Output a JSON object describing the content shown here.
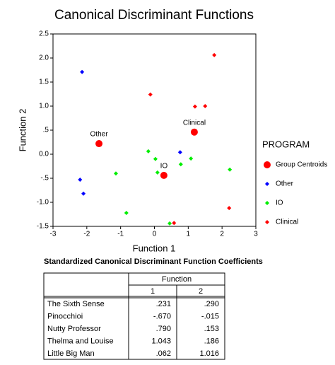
{
  "chart_data": {
    "type": "scatter",
    "title": "Canonical Discriminant Functions",
    "xlabel": "Function 1",
    "ylabel": "Function 2",
    "xlim": [
      -3,
      3
    ],
    "ylim": [
      -1.5,
      2.5
    ],
    "xticks": [
      -3,
      -2,
      -1,
      0,
      1,
      2,
      3
    ],
    "yticks": [
      2.5,
      {
        "value": 2,
        "label": "2.0"
      },
      1.5,
      {
        "value": 1,
        "label": "1.0"
      },
      {
        "value": 0.5,
        "label": ".5"
      },
      {
        "value": 0,
        "label": "0.0"
      },
      {
        "value": -0.5,
        "label": "-.5"
      },
      {
        "value": -1,
        "label": "-1.0"
      },
      -1.5
    ],
    "legend_title": "PROGRAM",
    "series": [
      {
        "name": "Group Centroids",
        "color": "#ff0000",
        "marker": "circle",
        "x": [
          -1.64,
          0.28,
          1.18
        ],
        "values": [
          0.22,
          -0.44,
          0.46
        ],
        "point_labels": [
          "Other",
          "IO",
          "Clinical"
        ]
      },
      {
        "name": "Other",
        "color": "#0000ff",
        "marker": "diamond",
        "x": [
          -2.14,
          -2.2,
          -2.1,
          0.76
        ],
        "values": [
          1.71,
          -0.53,
          -0.82,
          0.04
        ]
      },
      {
        "name": "IO",
        "color": "#00ee00",
        "marker": "diamond",
        "x": [
          -0.18,
          0.03,
          -1.14,
          0.09,
          -0.83,
          0.45,
          0.78,
          1.08,
          2.23
        ],
        "values": [
          0.06,
          -0.1,
          -0.4,
          -0.38,
          -1.22,
          -1.44,
          -0.21,
          -0.09,
          -0.32
        ]
      },
      {
        "name": "Clinical",
        "color": "#ff0000",
        "marker": "diamond",
        "x": [
          1.77,
          -0.12,
          1.2,
          1.5,
          2.21,
          0.58
        ],
        "values": [
          2.06,
          1.24,
          0.99,
          1.0,
          -1.12,
          -1.43
        ]
      }
    ]
  },
  "table": {
    "title": "Standardized Canonical Discriminant Function Coefficients",
    "header": "Function",
    "columns": [
      "1",
      "2"
    ],
    "rows": [
      [
        "The Sixth Sense",
        ".231",
        ".290"
      ],
      [
        "Pinocchioi",
        "-.670",
        "-.015"
      ],
      [
        "Nutty Professor",
        ".790",
        ".153"
      ],
      [
        "Thelma and Louise",
        "1.043",
        ".186"
      ],
      [
        "Little Big Man",
        ".062",
        "1.016"
      ]
    ]
  }
}
